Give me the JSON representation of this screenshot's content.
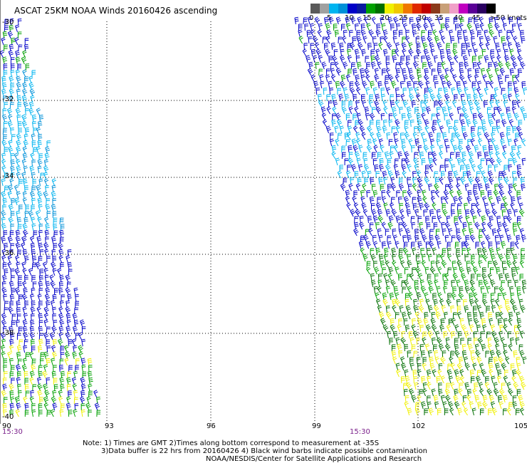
{
  "header": {
    "title": "ASCAT 25KM NOAA Winds 20160426 ascending"
  },
  "colorscale": {
    "colors": [
      "#5a5a5a",
      "#a0a0a0",
      "#00b4f0",
      "#0090d8",
      "#0000c8",
      "#0a1aa0",
      "#00a000",
      "#006e00",
      "#f0f000",
      "#f0c800",
      "#f07800",
      "#e02800",
      "#c00000",
      "#8b3a1a",
      "#c8a078",
      "#f0a0c8",
      "#c000c0",
      "#5a0096",
      "#2a0060",
      "#000000"
    ],
    "labels": [
      "0",
      "5",
      "10",
      "15",
      "20",
      "25",
      "30",
      "35",
      "40",
      "45",
      ">50 knots"
    ]
  },
  "map": {
    "lat_labels": [
      "-30",
      "-32",
      "-34",
      "-36",
      "-38",
      "-40"
    ],
    "lon_labels": [
      "90",
      "93",
      "96",
      "99",
      "102",
      "105"
    ],
    "time_labels": [
      "15:30",
      "15:30"
    ]
  },
  "notes": {
    "line1": "Note: 1) Times are GMT 2)Times along bottom correspond to measurement at -35S",
    "line2": "3)Data buffer is 22 hrs from 20160426 4) Black wind barbs indicate possible contamination",
    "line3": "NOAA/NESDIS/Center for Satellite Applications and Research"
  }
}
